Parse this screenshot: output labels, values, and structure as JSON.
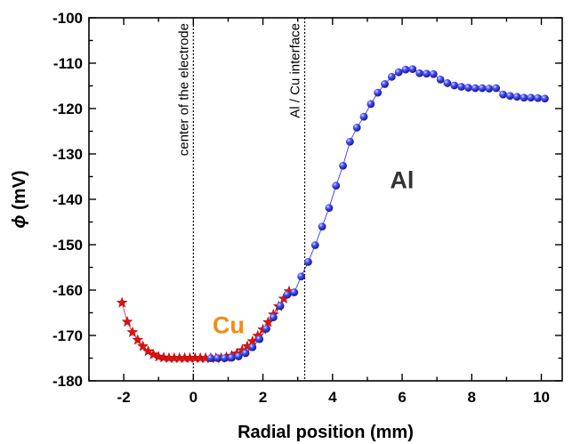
{
  "chart_data": {
    "type": "scatter",
    "title": "",
    "xlabel": "Radial position (mm)",
    "ylabel_symbol": "ϕ",
    "ylabel_unit": " (mV)",
    "xlim": [
      -3.0,
      10.6
    ],
    "ylim": [
      -180,
      -100
    ],
    "x_ticks": [
      -2,
      0,
      2,
      4,
      6,
      8,
      10
    ],
    "y_ticks": [
      -180,
      -170,
      -160,
      -150,
      -140,
      -130,
      -120,
      -110,
      -100
    ],
    "grid": false,
    "legend": "none",
    "series": [
      {
        "marker": "star",
        "color": "#e01010",
        "x": [
          -2.05,
          -1.9,
          -1.75,
          -1.6,
          -1.45,
          -1.3,
          -1.15,
          -1.0,
          -0.85,
          -0.7,
          -0.55,
          -0.4,
          -0.25,
          -0.1,
          0.05,
          0.2,
          0.35,
          0.5,
          0.65,
          0.8,
          0.95,
          1.1,
          1.25,
          1.4,
          1.55,
          1.7,
          1.85,
          2.0,
          2.15,
          2.3,
          2.45,
          2.6,
          2.75
        ],
        "y": [
          -162.8,
          -167.0,
          -169.3,
          -171.0,
          -172.4,
          -173.5,
          -174.2,
          -174.7,
          -174.9,
          -175.0,
          -175.0,
          -175.0,
          -175.0,
          -175.0,
          -175.0,
          -175.0,
          -175.0,
          -175.0,
          -175.0,
          -175.0,
          -174.8,
          -174.5,
          -174.0,
          -173.3,
          -172.4,
          -171.3,
          -170.1,
          -168.7,
          -167.1,
          -165.4,
          -163.6,
          -161.9,
          -160.3
        ]
      },
      {
        "marker": "sphere",
        "color": "#1616e0",
        "x": [
          0.5,
          0.7,
          0.9,
          1.1,
          1.3,
          1.5,
          1.7,
          1.9,
          2.1,
          2.3,
          2.5,
          2.7,
          2.9,
          3.1,
          3.3,
          3.5,
          3.7,
          3.9,
          4.1,
          4.3,
          4.5,
          4.7,
          4.9,
          5.1,
          5.3,
          5.5,
          5.7,
          5.9,
          6.1,
          6.3,
          6.5,
          6.7,
          6.9,
          7.1,
          7.3,
          7.5,
          7.7,
          7.9,
          8.1,
          8.3,
          8.5,
          8.7,
          8.9,
          9.1,
          9.3,
          9.5,
          9.7,
          9.9,
          10.1
        ],
        "y": [
          -175.0,
          -175.0,
          -175.0,
          -174.9,
          -174.6,
          -173.9,
          -172.6,
          -170.8,
          -168.5,
          -166.0,
          -163.5,
          -161.0,
          -160.5,
          -157.0,
          -153.8,
          -150.1,
          -146.0,
          -141.9,
          -137.0,
          -132.6,
          -127.3,
          -124.2,
          -121.8,
          -119.0,
          -116.5,
          -114.6,
          -113.0,
          -112.0,
          -111.4,
          -111.3,
          -112.2,
          -112.3,
          -112.4,
          -113.6,
          -114.4,
          -114.9,
          -115.2,
          -115.4,
          -115.5,
          -115.5,
          -115.6,
          -115.5,
          -116.9,
          -117.2,
          -117.4,
          -117.6,
          -117.6,
          -117.7,
          -117.8
        ]
      }
    ],
    "annotations": [
      {
        "text": "center of the electrode",
        "x": 0.0
      },
      {
        "text": "Al / Cu interface",
        "x": 3.2
      }
    ],
    "region_labels": [
      {
        "text": "Cu",
        "color": "#f08c1a",
        "x": 0.55,
        "y": -169.5
      },
      {
        "text": "Al",
        "color": "#333333",
        "x": 5.65,
        "y": -137.5
      }
    ]
  }
}
